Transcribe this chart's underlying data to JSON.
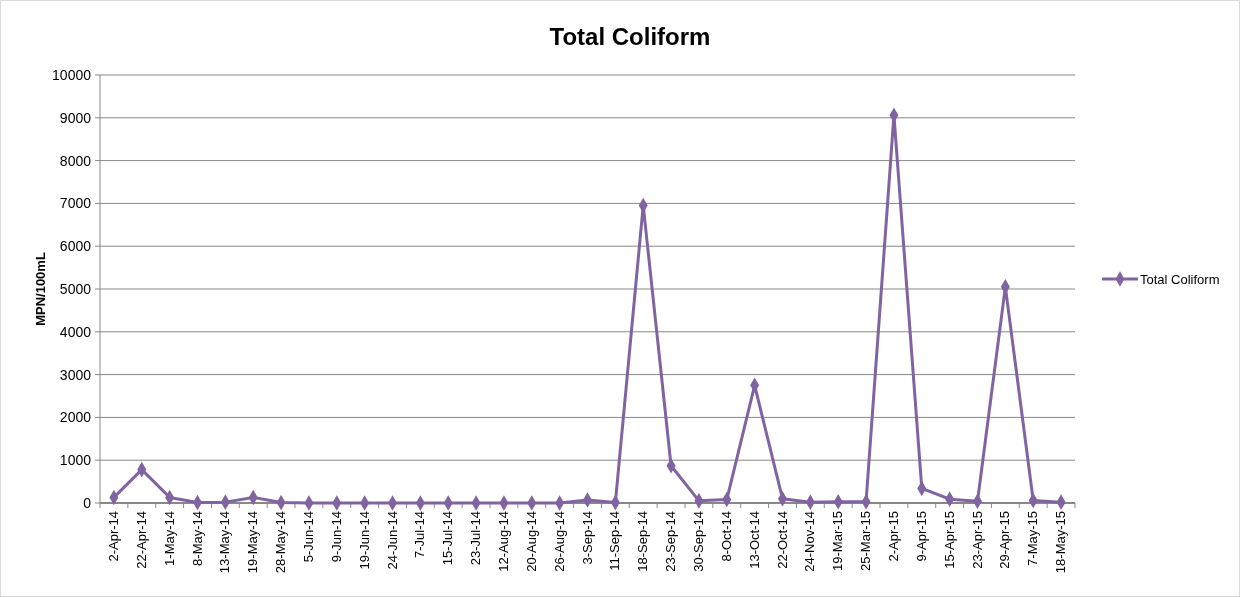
{
  "chart_data": {
    "type": "line",
    "title": "Total Coliform",
    "ylabel": "MPN/100mL",
    "categories": [
      "2-Apr-14",
      "22-Apr-14",
      "1-May-14",
      "8-May-14",
      "13-May-14",
      "19-May-14",
      "28-May-14",
      "5-Jun-14",
      "9-Jun-14",
      "19-Jun-14",
      "24-Jun-14",
      "7-Jul-14",
      "15-Jul-14",
      "23-Jul-14",
      "12-Aug-14",
      "20-Aug-14",
      "26-Aug-14",
      "3-Sep-14",
      "11-Sep-14",
      "18-Sep-14",
      "23-Sep-14",
      "30-Sep-14",
      "8-Oct-14",
      "13-Oct-14",
      "22-Oct-14",
      "24-Nov-14",
      "19-Mar-15",
      "25-Mar-15",
      "2-Apr-15",
      "9-Apr-15",
      "15-Apr-15",
      "23-Apr-15",
      "29-Apr-15",
      "7-May-15",
      "18-May-15"
    ],
    "series": [
      {
        "name": "Total Coliform",
        "color": "#8064a2",
        "values": [
          130,
          780,
          130,
          10,
          20,
          130,
          10,
          0,
          0,
          0,
          0,
          0,
          0,
          0,
          0,
          0,
          0,
          70,
          10,
          6950,
          870,
          50,
          80,
          2750,
          100,
          20,
          30,
          30,
          9060,
          340,
          90,
          40,
          5050,
          60,
          20
        ]
      }
    ],
    "ylim": [
      0,
      10000
    ],
    "yticks": [
      0,
      1000,
      2000,
      3000,
      4000,
      5000,
      6000,
      7000,
      8000,
      9000,
      10000
    ],
    "grid": "y",
    "legend": "right",
    "marker": "diamond",
    "line_style": "solid"
  }
}
